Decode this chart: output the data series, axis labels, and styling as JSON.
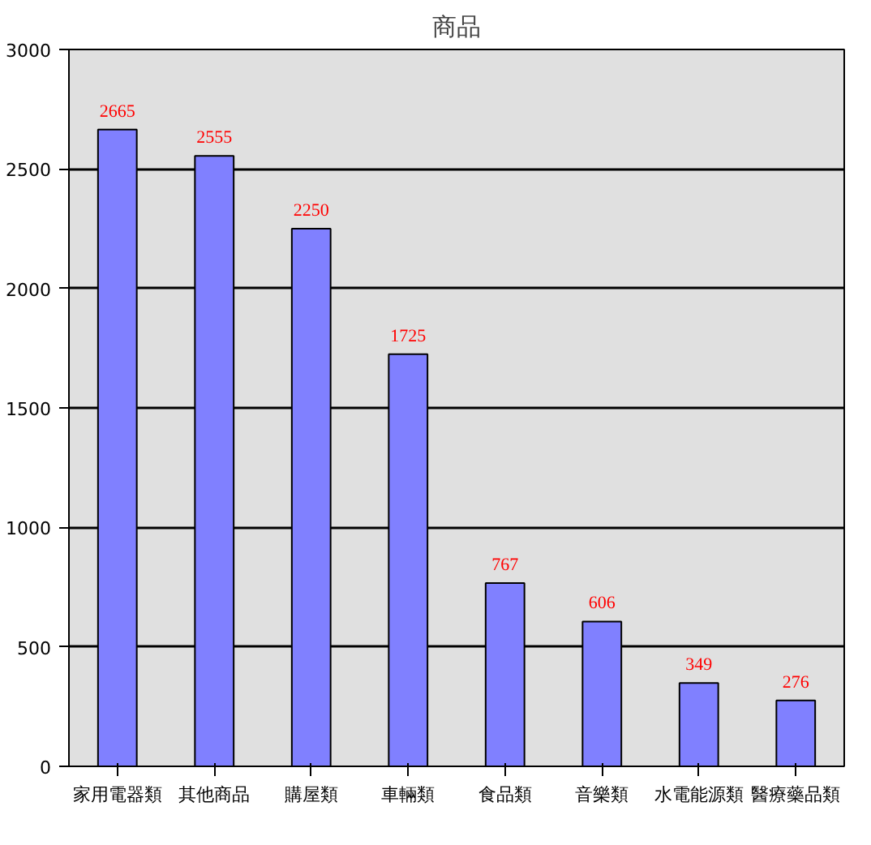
{
  "chart_data": {
    "type": "bar",
    "title": "商品",
    "categories": [
      "家用電器類",
      "其他商品",
      "購屋類",
      "車輛類",
      "食品類",
      "音樂類",
      "水電能源類",
      "醫療藥品類"
    ],
    "values": [
      2665,
      2555,
      2250,
      1725,
      767,
      606,
      349,
      276
    ],
    "color": "#8080ff",
    "data_labels": true,
    "ylim": [
      0,
      3000
    ],
    "yticks": [
      0,
      500,
      1000,
      1500,
      2000,
      2500,
      3000
    ],
    "grid": "y"
  }
}
